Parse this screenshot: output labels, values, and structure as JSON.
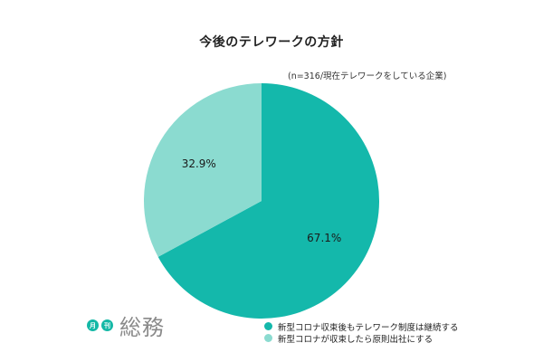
{
  "chart_data": {
    "type": "pie",
    "title": "今後のテレワークの方針",
    "subtitle": "(n=316/現在テレワークをしている企業)",
    "slices": [
      {
        "label": "新型コロナ収束後もテレワーク制度は継続する",
        "value": 67.1,
        "display": "67.1%",
        "color": "#14b8ab"
      },
      {
        "label": "新型コロナが収束したら原則出社にする",
        "value": 32.9,
        "display": "32.9%",
        "color": "#8bdbd0"
      }
    ],
    "legend_position": "bottom-right"
  },
  "logo": {
    "badge_1": "月",
    "badge_2": "刊",
    "wordmark": "総務"
  }
}
